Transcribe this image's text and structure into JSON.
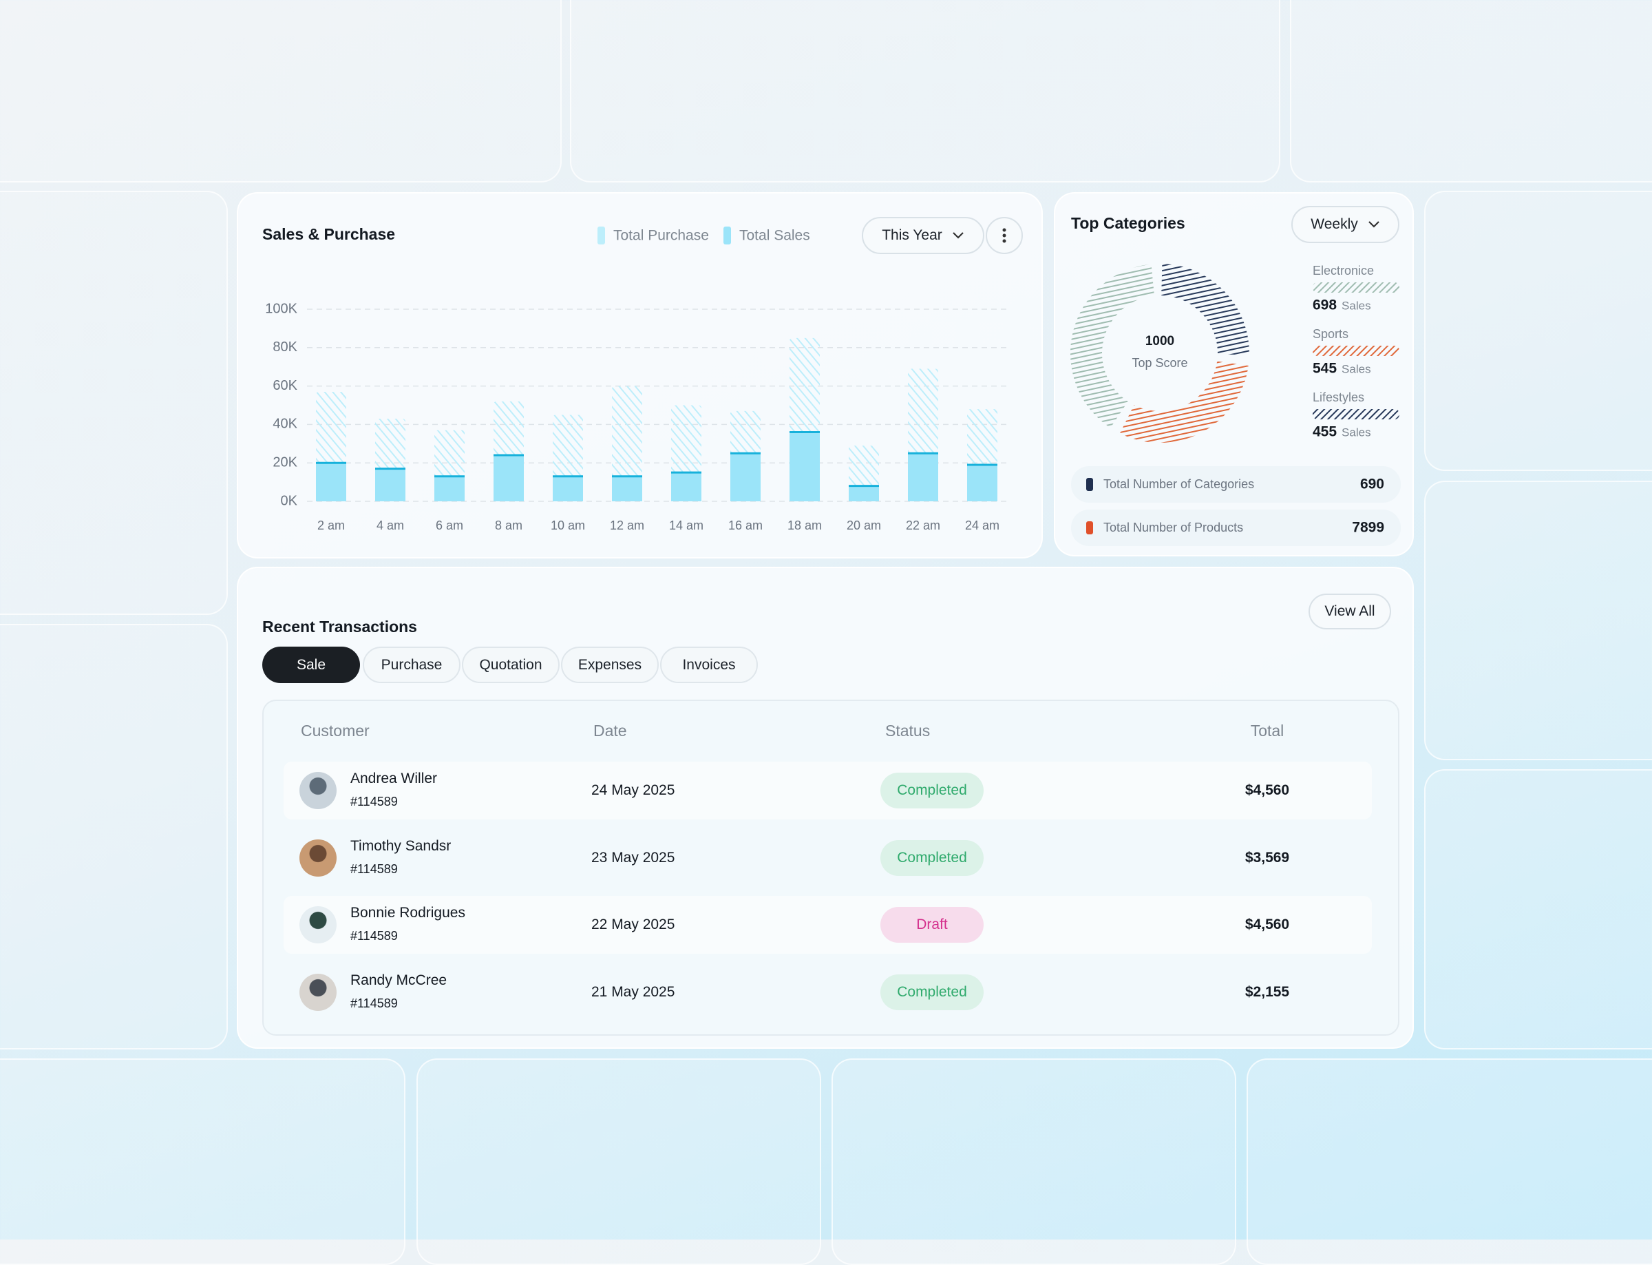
{
  "chart_data": [
    {
      "type": "bar",
      "title": "Sales & Purchase",
      "categories": [
        "2 am",
        "4 am",
        "6 am",
        "8 am",
        "10 am",
        "12 am",
        "14 am",
        "16 am",
        "18 am",
        "20 am",
        "22 am",
        "24 am"
      ],
      "series": [
        {
          "name": "Total Purchase",
          "color": "#bdeefb",
          "values": [
            57000,
            43000,
            37000,
            52000,
            45000,
            60000,
            50000,
            47000,
            85000,
            29000,
            69000,
            48000
          ]
        },
        {
          "name": "Total Sales",
          "color": "#9be4f9",
          "edge_color": "#17b1db",
          "values": [
            20000,
            17000,
            13000,
            24000,
            13000,
            13000,
            15000,
            25000,
            36000,
            8000,
            25000,
            19000
          ]
        }
      ],
      "ylim": [
        0,
        100000
      ],
      "yticks": [
        {
          "value": 0,
          "label": "0K"
        },
        {
          "value": 20000,
          "label": "20K"
        },
        {
          "value": 40000,
          "label": "40K"
        },
        {
          "value": 60000,
          "label": "60K"
        },
        {
          "value": 80000,
          "label": "80K"
        },
        {
          "value": 100000,
          "label": "100K"
        }
      ],
      "grid": true
    },
    {
      "type": "donut",
      "title": "Top Categories",
      "center_value": 1000,
      "center_label": "Top Score",
      "categories": [
        "Electronice",
        "Sports",
        "Lifestyles"
      ],
      "values": [
        698,
        545,
        455
      ],
      "colors": [
        "#9fbcb0",
        "#e0683a",
        "#27395a"
      ],
      "value_unit": "Sales"
    }
  ],
  "sales_card": {
    "period_button": "This Year"
  },
  "categories_card": {
    "period_button": "Weekly",
    "stats": [
      {
        "label": "Total Number of Categories",
        "value": 690,
        "color": "#1f2f4f"
      },
      {
        "label": "Total Number of Products",
        "value": 7899,
        "color": "#e0502a"
      }
    ]
  },
  "transactions": {
    "title": "Recent Transactions",
    "view_all": "View All",
    "tabs": [
      "Sale",
      "Purchase",
      "Quotation",
      "Expenses",
      "Invoices"
    ],
    "columns": [
      "Customer",
      "Date",
      "Status",
      "Total"
    ],
    "rows": [
      {
        "name": "Andrea Willer",
        "id": "#114589",
        "date": "24 May 2025",
        "status": "Completed",
        "status_color": "#2faa6c",
        "status_bg": "#dcf2e8",
        "total": "$4,560"
      },
      {
        "name": "Timothy Sandsr",
        "id": "#114589",
        "date": "23 May 2025",
        "status": "Completed",
        "status_color": "#2faa6c",
        "status_bg": "#dcf2e8",
        "total": "$3,569"
      },
      {
        "name": "Bonnie Rodrigues",
        "id": "#114589",
        "date": "22 May 2025",
        "status": "Draft",
        "status_color": "#d42f8c",
        "status_bg": "#f7dcec",
        "total": "$4,560"
      },
      {
        "name": "Randy McCree",
        "id": "#114589",
        "date": "21 May 2025",
        "status": "Completed",
        "status_color": "#2faa6c",
        "status_bg": "#dcf2e8",
        "total": "$2,155"
      }
    ]
  }
}
